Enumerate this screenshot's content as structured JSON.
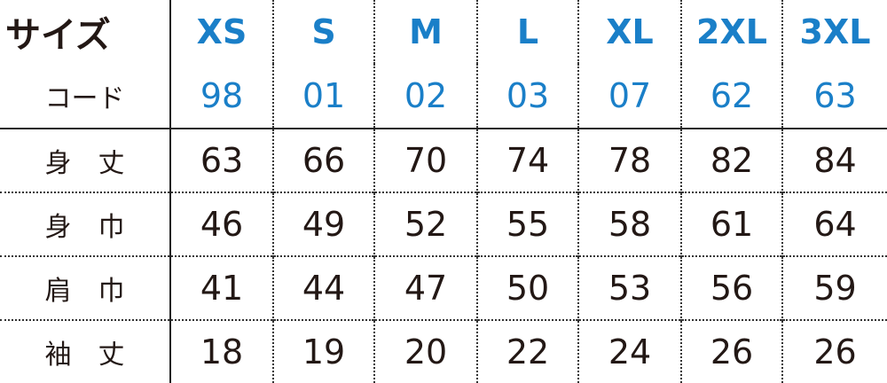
{
  "header": {
    "label": "サイズ",
    "sizes": [
      "XS",
      "S",
      "M",
      "L",
      "XL",
      "2XL",
      "3XL"
    ]
  },
  "rows": [
    {
      "label": "コード",
      "values": [
        "98",
        "01",
        "02",
        "03",
        "07",
        "62",
        "63"
      ]
    },
    {
      "label": "身　丈",
      "values": [
        "63",
        "66",
        "70",
        "74",
        "78",
        "82",
        "84"
      ]
    },
    {
      "label": "身　巾",
      "values": [
        "46",
        "49",
        "52",
        "55",
        "58",
        "61",
        "64"
      ]
    },
    {
      "label": "肩　巾",
      "values": [
        "41",
        "44",
        "47",
        "50",
        "53",
        "56",
        "59"
      ]
    },
    {
      "label": "袖　丈",
      "values": [
        "18",
        "19",
        "20",
        "22",
        "24",
        "26",
        "26"
      ]
    }
  ],
  "colors": {
    "accent": "#1a7fc8",
    "text": "#231815"
  }
}
